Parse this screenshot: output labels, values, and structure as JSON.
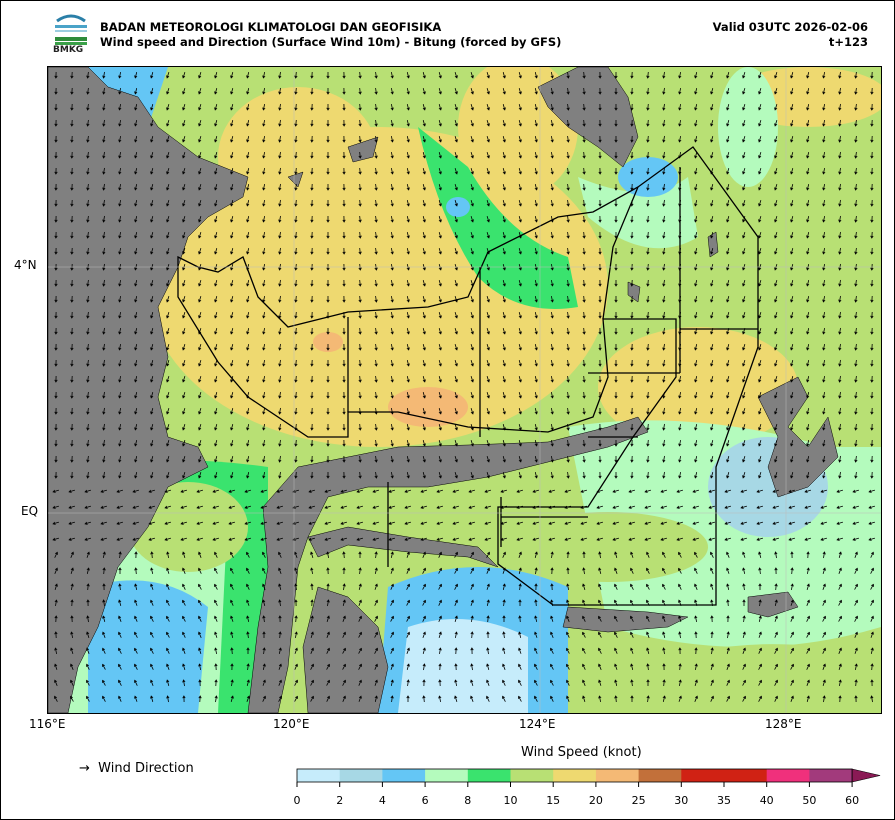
{
  "header": {
    "logo_text": "BMKG",
    "organization": "BADAN METEOROLOGI KLIMATOLOGI DAN GEOFISIKA",
    "title": "Wind speed and Direction (Surface Wind 10m) - Bitung (forced by GFS)",
    "valid": "Valid 03UTC 2026-02-06",
    "forecast_step": "t+123"
  },
  "map": {
    "lon_ticks": [
      "116°E",
      "120°E",
      "124°E",
      "128°E"
    ],
    "lat_ticks": [
      "4°N",
      "EQ"
    ],
    "land_color": "#808080"
  },
  "legend": {
    "direction_symbol": "→",
    "direction_label": "Wind Direction",
    "colorbar_title": "Wind Speed (knot)",
    "bounds": [
      "0",
      "2",
      "4",
      "6",
      "8",
      "10",
      "15",
      "20",
      "25",
      "30",
      "35",
      "40",
      "50",
      "60"
    ],
    "colors": [
      "#c6ecfb",
      "#a7d8e5",
      "#64c6f5",
      "#b4fbbd",
      "#3ae36e",
      "#b8e074",
      "#eed970",
      "#f4b975",
      "#c2703a",
      "#d02214",
      "#d02214",
      "#f0307c",
      "#a23a7c"
    ],
    "extend_color": "#8a1a55"
  }
}
